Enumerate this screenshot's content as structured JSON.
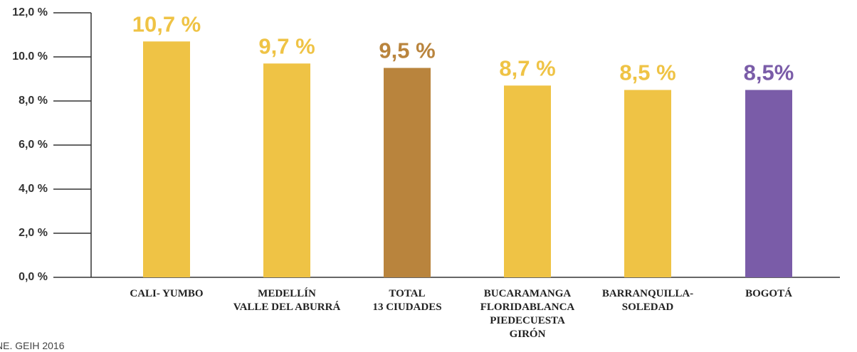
{
  "chart_data": {
    "type": "bar",
    "categories": [
      "CALI- YUMBO",
      "MEDELLÍN\nVALLE DEL ABURRÁ",
      "TOTAL\n13 CIUDADES",
      "BUCARAMANGA\nFLORIDABLANCA\nPIEDECUESTA\nGIRÓN",
      "BARRANQUILLA-\nSOLEDAD",
      "BOGOTÁ"
    ],
    "values": [
      10.7,
      9.7,
      9.5,
      8.7,
      8.5,
      8.5
    ],
    "value_labels": [
      "10,7 %",
      "9,7 %",
      "9,5 %",
      "8,7 %",
      "8,5 %",
      "8,5%"
    ],
    "colors": [
      "#efc345",
      "#efc345",
      "#b9843d",
      "#efc345",
      "#efc345",
      "#7a5ca8"
    ],
    "ylim": [
      0,
      12
    ],
    "yticks": [
      {
        "value": 0,
        "label": "0,0 %"
      },
      {
        "value": 2,
        "label": "2,0 %"
      },
      {
        "value": 4,
        "label": "4,0 %"
      },
      {
        "value": 6,
        "label": "6,0 %"
      },
      {
        "value": 8,
        "label": "8,0 %"
      },
      {
        "value": 10,
        "label": "10.0 %"
      },
      {
        "value": 12,
        "label": "12,0 %"
      }
    ],
    "source": "NE. GEIH 2016"
  }
}
